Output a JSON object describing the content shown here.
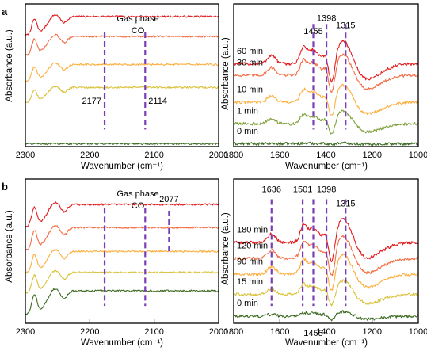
{
  "colors": {
    "trace_palette": [
      "#e31a1c",
      "#f46d43",
      "#fdae3d",
      "#d9c23a",
      "#7fa03a",
      "#3d6b21"
    ],
    "marker_line": "#7b3fb5",
    "axis": "#000000"
  },
  "chart_data": [
    {
      "id": "a-left",
      "panel_label": "a",
      "type": "line",
      "xlabel": "Wavenumber (cm⁻¹)",
      "ylabel": "Absorbance (a.u.)",
      "xlim": [
        2300,
        2000
      ],
      "x_ticks": [
        2300,
        2200,
        2100,
        2000
      ],
      "title_lines": [
        "Gas phase",
        "CO"
      ],
      "marker_lines": [
        2177,
        2114
      ],
      "annotations": [
        {
          "text": "2177",
          "x": 2177,
          "y_frac": 0.3
        },
        {
          "text": "2114",
          "x": 2114,
          "y_frac": 0.3
        }
      ],
      "series": [
        {
          "color_index": 0,
          "offset": 0.78,
          "peak": 0.24
        },
        {
          "color_index": 1,
          "offset": 0.64,
          "peak": 0.24
        },
        {
          "color_index": 2,
          "offset": 0.46,
          "peak": 0.21
        },
        {
          "color_index": 3,
          "offset": 0.31,
          "peak": 0.19
        },
        {
          "color_index": 5,
          "offset": 0.02,
          "peak": 0.0
        }
      ]
    },
    {
      "id": "a-right",
      "panel_label": "",
      "type": "line",
      "xlabel": "Wavenumber (cm⁻¹)",
      "ylabel": "Absorbance (a.u.)",
      "xlim": [
        1800,
        1000
      ],
      "x_ticks": [
        1800,
        1600,
        1400,
        1200,
        1000
      ],
      "marker_lines": [
        1455,
        1398,
        1315
      ],
      "annotations": [
        {
          "text": "1455",
          "x": 1455,
          "y_frac": 0.79
        },
        {
          "text": "1398",
          "x": 1398,
          "y_frac": 0.88
        },
        {
          "text": "1315",
          "x": 1315,
          "y_frac": 0.83
        }
      ],
      "series": [
        {
          "name": "60 min",
          "color_index": 0,
          "offset": 0.58,
          "amp": 1.0
        },
        {
          "name": "30 min",
          "color_index": 1,
          "offset": 0.5,
          "amp": 0.9
        },
        {
          "name": "10 min",
          "color_index": 2,
          "offset": 0.31,
          "amp": 0.75
        },
        {
          "name": "1 min",
          "color_index": 4,
          "offset": 0.16,
          "amp": 0.55
        },
        {
          "name": "0 min",
          "color_index": 5,
          "offset": 0.02,
          "amp": 0.03
        }
      ]
    },
    {
      "id": "b-left",
      "panel_label": "b",
      "type": "line",
      "xlabel": "Wavenumber (cm⁻¹)",
      "ylabel": "Absorbance (a.u.)",
      "xlim": [
        2300,
        2000
      ],
      "x_ticks": [
        2300,
        2200,
        2100,
        2000
      ],
      "title_lines": [
        "Gas phase",
        "CO"
      ],
      "marker_lines": [
        2177,
        2114
      ],
      "short_marker_line": 2077,
      "annotations": [
        {
          "text": "2077",
          "x": 2077,
          "y_frac": 0.84
        }
      ],
      "series": [
        {
          "color_index": 0,
          "offset": 0.67,
          "peak": 0.28
        },
        {
          "color_index": 1,
          "offset": 0.51,
          "peak": 0.28
        },
        {
          "color_index": 2,
          "offset": 0.35,
          "peak": 0.27
        },
        {
          "color_index": 3,
          "offset": 0.21,
          "peak": 0.26
        },
        {
          "color_index": 5,
          "offset": 0.06,
          "peak": 0.3
        }
      ]
    },
    {
      "id": "b-right",
      "panel_label": "",
      "type": "line",
      "xlabel": "Wavenumber (cm⁻¹)",
      "ylabel": "Absorbance (a.u.)",
      "xlim": [
        1800,
        1000
      ],
      "x_ticks": [
        1800,
        1600,
        1400,
        1200,
        1000
      ],
      "marker_lines": [
        1636,
        1501,
        1455,
        1398,
        1315
      ],
      "annotations": [
        {
          "text": "1636",
          "x": 1636,
          "y_frac": 0.91
        },
        {
          "text": "1501",
          "x": 1501,
          "y_frac": 0.91
        },
        {
          "text": "1398",
          "x": 1398,
          "y_frac": 0.91
        },
        {
          "text": "1315",
          "x": 1315,
          "y_frac": 0.81
        },
        {
          "text": "1455",
          "x": 1455,
          "y_frac": -0.04
        }
      ],
      "series": [
        {
          "name": "180 min",
          "color_index": 0,
          "offset": 0.56,
          "amp": 1.0
        },
        {
          "name": "120 min",
          "color_index": 1,
          "offset": 0.45,
          "amp": 0.95
        },
        {
          "name": "90 min",
          "color_index": 2,
          "offset": 0.34,
          "amp": 0.85
        },
        {
          "name": "15 min",
          "color_index": 3,
          "offset": 0.2,
          "amp": 0.6
        },
        {
          "name": "0 min",
          "color_index": 5,
          "offset": 0.05,
          "amp": 0.2
        }
      ]
    }
  ]
}
